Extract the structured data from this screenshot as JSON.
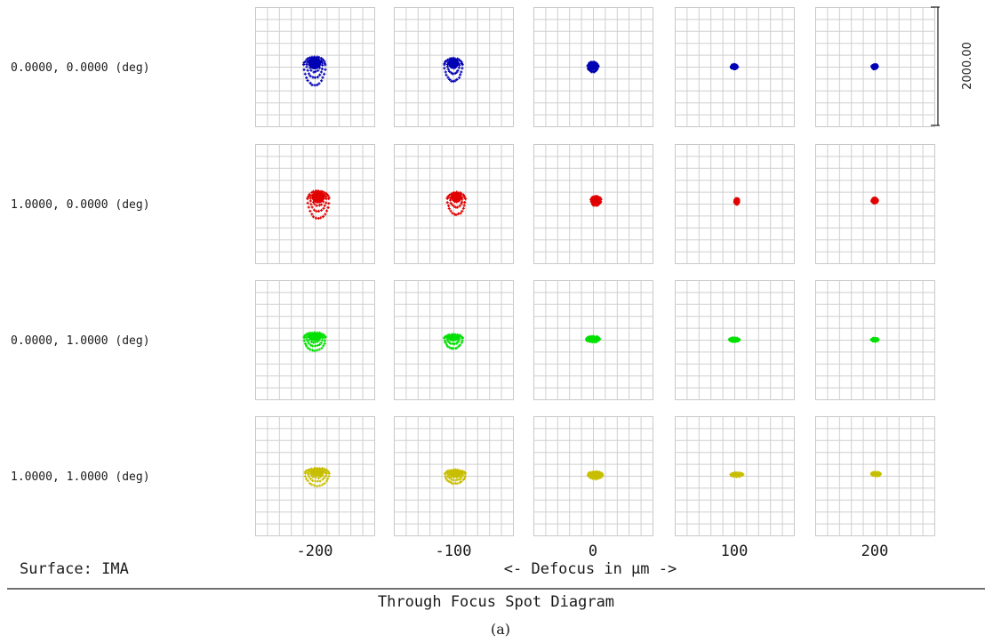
{
  "chart_data": {
    "type": "scatter",
    "title": "Through Focus Spot Diagram",
    "subtitle": "(a)",
    "xlabel": "<- Defocus in µm ->",
    "surface": "Surface: IMA",
    "scale_bar": "2000.00",
    "defocus_labels": [
      "-200",
      "-100",
      "0",
      "100",
      "200"
    ],
    "defocus_values": [
      -200,
      -100,
      0,
      100,
      200
    ],
    "grid_divisions": 10,
    "fields": [
      {
        "label": "0.0000, 0.0000 (deg)",
        "color": "#0000b4",
        "spots": [
          {
            "cx": 0.0,
            "cy": 30,
            "rx": 180,
            "ry": 220,
            "tail": 380
          },
          {
            "cx": 0.0,
            "cy": 30,
            "rx": 150,
            "ry": 180,
            "tail": 300
          },
          {
            "cx": 0.0,
            "cy": 10,
            "rx": 85,
            "ry": 110,
            "tail": 60
          },
          {
            "cx": 0.0,
            "cy": 0,
            "rx": 50,
            "ry": 55,
            "tail": 0
          },
          {
            "cx": 0.0,
            "cy": 0,
            "rx": 45,
            "ry": 60,
            "tail": 0
          }
        ]
      },
      {
        "label": "1.0000, 0.0000 (deg)",
        "color": "#e00000",
        "spots": [
          {
            "cx": 60,
            "cy": 80,
            "rx": 180,
            "ry": 220,
            "tail": 360
          },
          {
            "cx": 50,
            "cy": 80,
            "rx": 150,
            "ry": 180,
            "tail": 280
          },
          {
            "cx": 50,
            "cy": 60,
            "rx": 80,
            "ry": 100,
            "tail": 60
          },
          {
            "cx": 40,
            "cy": 40,
            "rx": 35,
            "ry": 80,
            "tail": 0
          },
          {
            "cx": 0,
            "cy": 50,
            "rx": 45,
            "ry": 70,
            "tail": 0
          }
        ]
      },
      {
        "label": "0.0000, 1.0000 (deg)",
        "color": "#00e000",
        "spots": [
          {
            "cx": 0,
            "cy": 30,
            "rx": 180,
            "ry": 150,
            "tail": 230
          },
          {
            "cx": 0,
            "cy": 20,
            "rx": 150,
            "ry": 120,
            "tail": 180
          },
          {
            "cx": 0,
            "cy": 10,
            "rx": 110,
            "ry": 80,
            "tail": 0
          },
          {
            "cx": 0,
            "cy": 0,
            "rx": 80,
            "ry": 45,
            "tail": 0
          },
          {
            "cx": 0,
            "cy": 0,
            "rx": 55,
            "ry": 40,
            "tail": 0
          }
        ]
      },
      {
        "label": "1.0000, 1.0000 (deg)",
        "color": "#c8be00",
        "spots": [
          {
            "cx": 40,
            "cy": 40,
            "rx": 200,
            "ry": 150,
            "tail": 220
          },
          {
            "cx": 30,
            "cy": 30,
            "rx": 170,
            "ry": 120,
            "tail": 160
          },
          {
            "cx": 40,
            "cy": 20,
            "rx": 120,
            "ry": 80,
            "tail": 40
          },
          {
            "cx": 40,
            "cy": 20,
            "rx": 100,
            "ry": 50,
            "tail": 0
          },
          {
            "cx": 20,
            "cy": 30,
            "rx": 70,
            "ry": 50,
            "tail": 0
          }
        ]
      }
    ]
  }
}
